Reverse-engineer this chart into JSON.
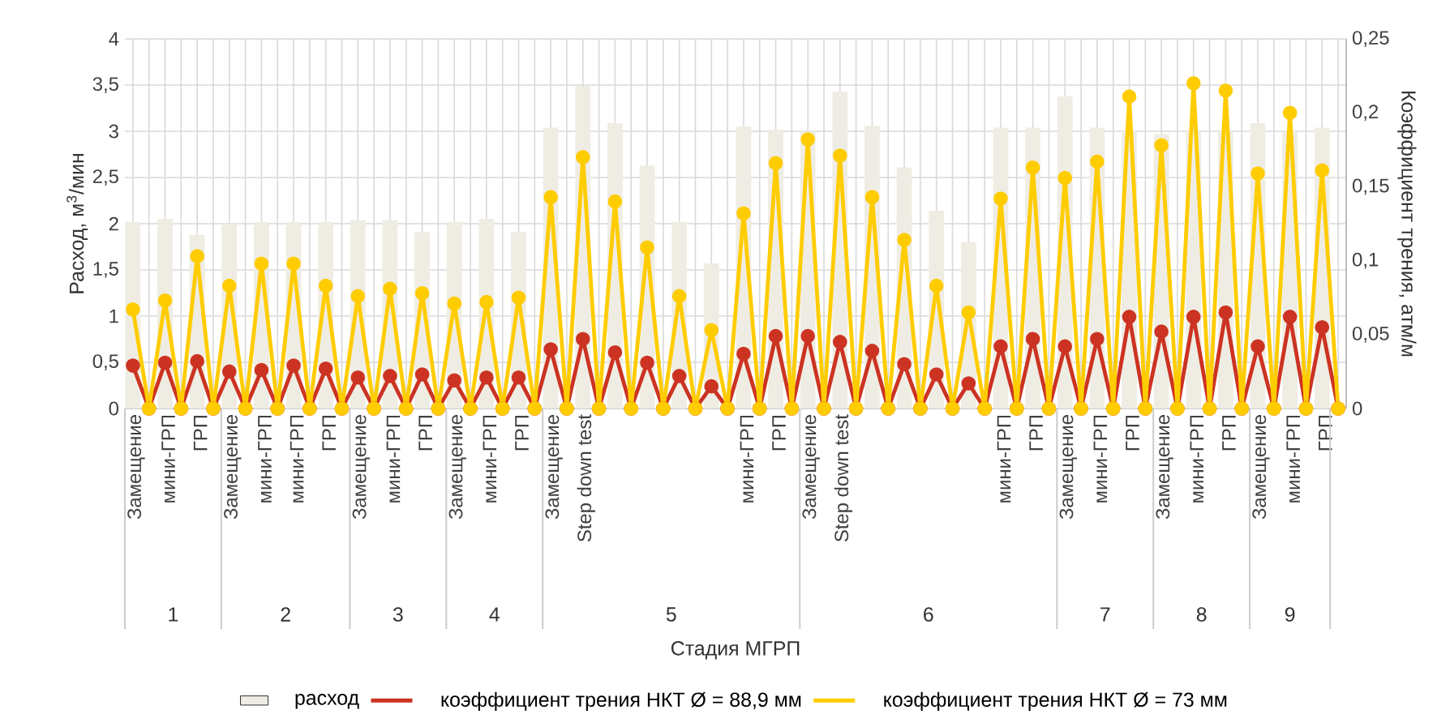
{
  "chart_data": {
    "type": "bar",
    "categories": [
      "Замещение",
      null,
      "мини-ГРП",
      null,
      "ГРП",
      null,
      "Замещение",
      null,
      "мини-ГРП",
      null,
      "мини-ГРП",
      null,
      "ГРП",
      null,
      "Замещение",
      null,
      "мини-ГРП",
      null,
      "ГРП",
      null,
      "Замещение",
      null,
      "мини-ГРП",
      null,
      "ГРП",
      null,
      "Замещение",
      null,
      "Step down test",
      null,
      null,
      null,
      null,
      null,
      null,
      null,
      null,
      null,
      "мини-ГРП",
      null,
      "ГРП",
      null,
      "Замещение",
      null,
      "Step down test",
      null,
      null,
      null,
      null,
      null,
      null,
      null,
      null,
      null,
      "мини-ГРП",
      null,
      "ГРП",
      null,
      "Замещение",
      null,
      "мини-ГРП",
      null,
      "ГРП",
      null,
      "Замещение",
      null,
      "мини-ГРП",
      null,
      "ГРП",
      null,
      "Замещение",
      null,
      "мини-ГРП",
      null,
      "ГРП",
      null
    ],
    "series": [
      {
        "name": "расход",
        "color": "#efede3",
        "values": [
          2.02,
          null,
          2.05,
          null,
          1.88,
          null,
          2.0,
          null,
          2.02,
          null,
          2.02,
          null,
          2.02,
          null,
          2.04,
          null,
          2.04,
          null,
          1.91,
          null,
          2.02,
          null,
          2.05,
          null,
          1.91,
          null,
          3.04,
          null,
          3.49,
          null,
          3.09,
          null,
          2.63,
          null,
          2.02,
          null,
          1.57,
          null,
          3.05,
          null,
          3.02,
          null,
          3.0,
          null,
          3.43,
          null,
          3.06,
          null,
          2.61,
          null,
          2.14,
          null,
          1.8,
          null,
          3.04,
          null,
          3.04,
          null,
          3.38,
          null,
          3.04,
          null,
          3.0,
          null,
          2.97,
          null,
          3.0,
          null,
          3.0,
          null,
          3.09,
          null,
          3.0,
          null,
          3.04,
          null
        ]
      },
      {
        "name": "коэффициент трения НКТ Ø = 88,9 мм",
        "type": "line",
        "axis": "y2",
        "color": "#cc3322",
        "values": [
          0.029,
          0,
          0.031,
          0,
          0.032,
          0,
          0.025,
          0,
          0.026,
          0,
          0.029,
          0,
          0.027,
          0,
          0.021,
          0,
          0.022,
          0,
          0.023,
          0,
          0.019,
          0,
          0.021,
          0,
          0.021,
          0,
          0.04,
          0,
          0.047,
          0,
          0.038,
          0,
          0.031,
          0,
          0.022,
          0,
          0.015,
          0,
          0.037,
          0,
          0.049,
          0,
          0.049,
          0,
          0.045,
          0,
          0.039,
          0,
          0.03,
          0,
          0.023,
          0,
          0.017,
          0,
          0.042,
          0,
          0.047,
          0,
          0.042,
          0,
          0.047,
          0,
          0.062,
          0,
          0.052,
          0,
          0.062,
          0,
          0.065,
          0,
          0.042,
          0,
          0.062,
          0,
          0.055,
          0
        ]
      },
      {
        "name": "коэффициент трения НКТ Ø = 73 мм",
        "type": "line",
        "axis": "y2",
        "color": "#ffcc00",
        "values": [
          0.067,
          0,
          0.073,
          0,
          0.103,
          0,
          0.083,
          0,
          0.098,
          0,
          0.098,
          0,
          0.083,
          0,
          0.076,
          0,
          0.081,
          0,
          0.078,
          0,
          0.071,
          0,
          0.072,
          0,
          0.075,
          0,
          0.143,
          0,
          0.17,
          0,
          0.14,
          0,
          0.109,
          0,
          0.076,
          0,
          0.053,
          0,
          0.132,
          0,
          0.166,
          0,
          0.182,
          0,
          0.171,
          0,
          0.143,
          0,
          0.114,
          0,
          0.083,
          0,
          0.065,
          0,
          0.142,
          0,
          0.163,
          0,
          0.156,
          0,
          0.167,
          0,
          0.211,
          0,
          0.178,
          0,
          0.22,
          0,
          0.215,
          0,
          0.159,
          0,
          0.2,
          0,
          0.161,
          0
        ]
      }
    ],
    "ylabel": "Расход, м$^{3}$/мин",
    "y2label": "Коэффициент трения, атм/м",
    "xlabel": "Стадия МГРП",
    "ylim": [
      0,
      4
    ],
    "yticks": [
      0,
      {
        "value": 0.5,
        "label": "0,5"
      },
      1,
      {
        "value": 1.5,
        "label": "1,5"
      },
      2,
      {
        "value": 2.5,
        "label": "2,5"
      },
      3,
      {
        "value": 3.5,
        "label": "3,5"
      },
      4
    ],
    "y2lim": [
      0,
      0.25
    ],
    "y2ticks": [
      0,
      {
        "value": 0.05,
        "label": "0,05"
      },
      {
        "value": 0.1,
        "label": "0,1"
      },
      {
        "value": 0.15,
        "label": "0,15"
      },
      {
        "value": 0.2,
        "label": "0,2"
      },
      {
        "value": 0.25,
        "label": "0,25"
      }
    ],
    "annotations": [
      "1",
      "2",
      "3",
      "4",
      "5",
      "6",
      "7",
      "8",
      "9"
    ],
    "grid": true,
    "legend": "bottom",
    "marker": "circle",
    "line_style": "solid"
  }
}
